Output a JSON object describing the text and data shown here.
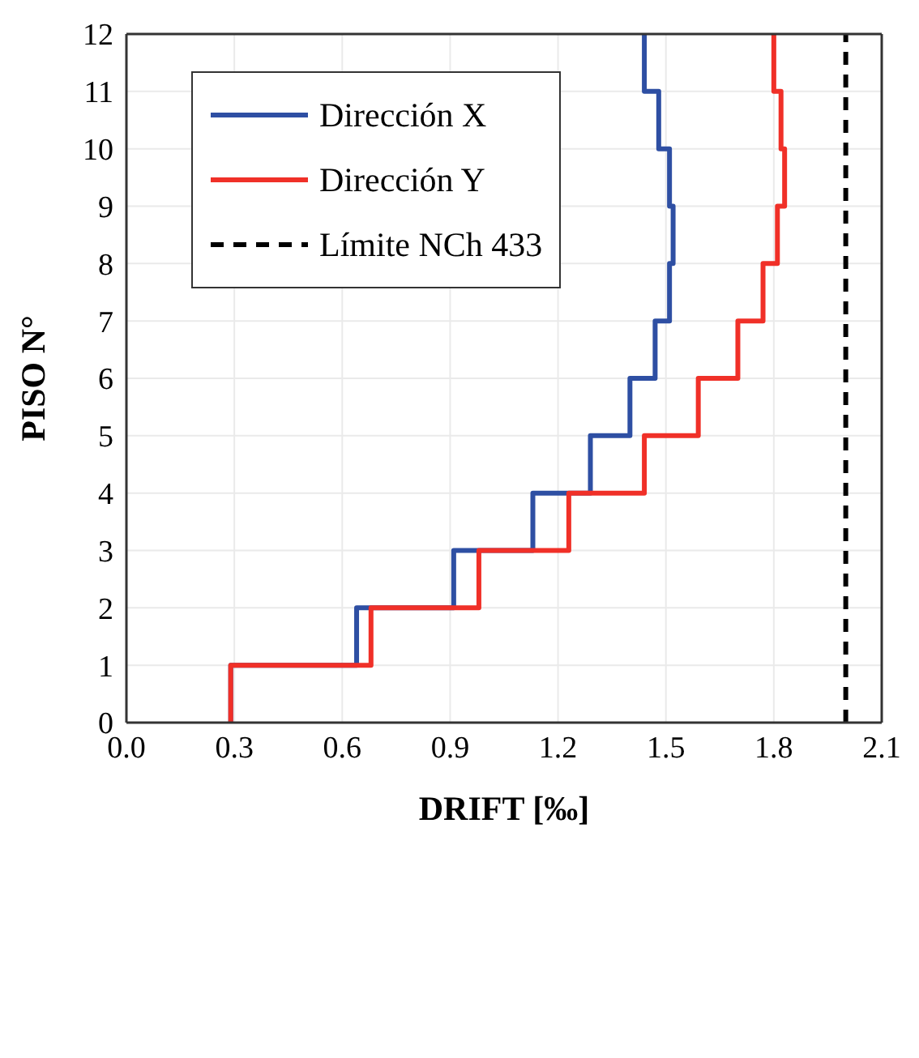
{
  "chart_data": {
    "type": "line",
    "xlabel": "DRIFT [‰]",
    "ylabel": "PISO N°",
    "xlim": [
      0,
      2.1
    ],
    "xticks": [
      {
        "value": 0,
        "label": "0.0"
      },
      0.3,
      0.6,
      0.9,
      1.2,
      1.5,
      1.8,
      2.1
    ],
    "ylim": [
      0,
      12
    ],
    "yticks": [
      0,
      1,
      2,
      3,
      4,
      5,
      6,
      7,
      8,
      9,
      10,
      11,
      12
    ],
    "grid": true,
    "legend": "top left",
    "series": [
      {
        "name": "Dirección X",
        "color": "#2e4fa3",
        "line_style": "solid",
        "x": [
          0.29,
          0.29,
          0.64,
          0.64,
          0.91,
          0.91,
          1.13,
          1.13,
          1.29,
          1.29,
          1.4,
          1.4,
          1.47,
          1.47,
          1.51,
          1.51,
          1.52,
          1.52,
          1.51,
          1.51,
          1.48,
          1.48,
          1.44,
          1.44
        ],
        "values": [
          0,
          1,
          1,
          2,
          2,
          3,
          3,
          4,
          4,
          5,
          5,
          6,
          6,
          7,
          7,
          8,
          8,
          9,
          9,
          10,
          10,
          11,
          11,
          12
        ]
      },
      {
        "name": "Dirección Y",
        "color": "#f03028",
        "line_style": "solid",
        "x": [
          0.29,
          0.29,
          0.68,
          0.68,
          0.98,
          0.98,
          1.23,
          1.23,
          1.44,
          1.44,
          1.59,
          1.59,
          1.7,
          1.7,
          1.77,
          1.77,
          1.81,
          1.81,
          1.83,
          1.83,
          1.82,
          1.82,
          1.8,
          1.8
        ],
        "values": [
          0,
          1,
          1,
          2,
          2,
          3,
          3,
          4,
          4,
          5,
          5,
          6,
          6,
          7,
          7,
          8,
          8,
          9,
          9,
          10,
          10,
          11,
          11,
          12
        ]
      },
      {
        "name": "Límite NCh 433",
        "color": "#000000",
        "line_style": "dashed",
        "x": [
          2.0,
          2.0
        ],
        "values": [
          0,
          12
        ]
      }
    ]
  }
}
